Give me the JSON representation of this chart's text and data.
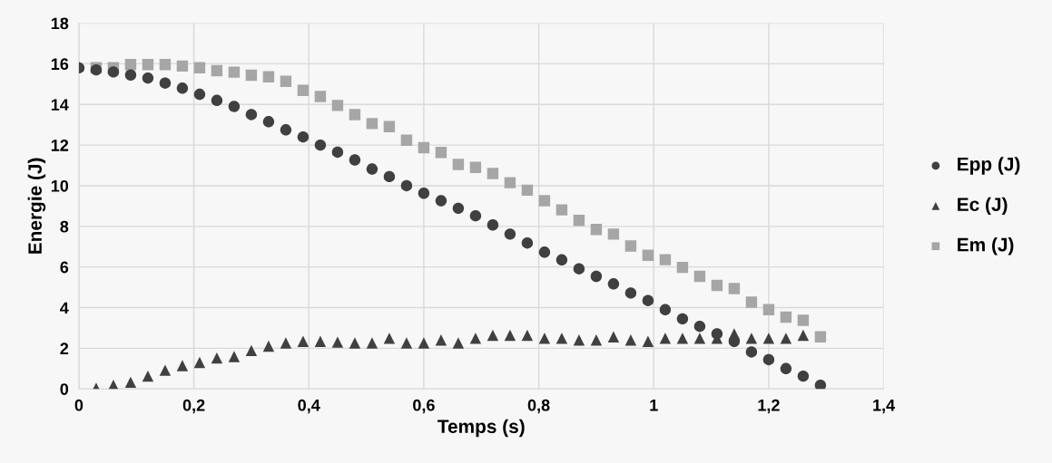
{
  "chart_data": {
    "type": "scatter",
    "xlabel": "Temps (s)",
    "ylabel": "Energie (J)",
    "xlim": [
      0,
      1.4
    ],
    "ylim": [
      0,
      18
    ],
    "xticks": [
      0,
      {
        "value": 0.2,
        "label": "0,2"
      },
      {
        "value": 0.4,
        "label": "0,4"
      },
      {
        "value": 0.6,
        "label": "0,6"
      },
      {
        "value": 0.8,
        "label": "0,8"
      },
      1,
      {
        "value": 1.2,
        "label": "1,2"
      },
      {
        "value": 1.4,
        "label": "1,4"
      }
    ],
    "yticks": [
      0,
      2,
      4,
      6,
      8,
      10,
      12,
      14,
      16,
      18
    ],
    "grid": true,
    "legend": "right",
    "series": [
      {
        "name": "Epp (J)",
        "color": "#404040",
        "marker": "circle",
        "x": [
          0,
          0.03,
          0.06,
          0.09,
          0.12,
          0.15,
          0.18,
          0.21,
          0.24,
          0.27,
          0.3,
          0.33,
          0.36,
          0.39,
          0.42,
          0.45,
          0.48,
          0.51,
          0.54,
          0.57,
          0.6,
          0.63,
          0.66,
          0.69,
          0.72,
          0.75,
          0.78,
          0.81,
          0.84,
          0.87,
          0.9,
          0.93,
          0.96,
          0.99,
          1.02,
          1.05,
          1.08,
          1.11,
          1.14,
          1.17,
          1.2,
          1.23,
          1.26,
          1.29
        ],
        "values": [
          15.8,
          15.7,
          15.6,
          15.45,
          15.3,
          15.05,
          14.8,
          14.5,
          14.2,
          13.9,
          13.5,
          13.15,
          12.75,
          12.4,
          12.0,
          11.65,
          11.27,
          10.82,
          10.45,
          10.0,
          9.63,
          9.26,
          8.89,
          8.52,
          8.07,
          7.62,
          7.18,
          6.73,
          6.35,
          5.91,
          5.54,
          5.17,
          4.72,
          4.35,
          3.9,
          3.45,
          3.08,
          2.71,
          2.34,
          1.82,
          1.44,
          1.0,
          0.63,
          0.18
        ]
      },
      {
        "name": "Ec (J)",
        "color": "#404040",
        "marker": "triangle",
        "x": [
          0.03,
          0.06,
          0.09,
          0.12,
          0.15,
          0.18,
          0.21,
          0.24,
          0.27,
          0.3,
          0.33,
          0.36,
          0.39,
          0.42,
          0.45,
          0.48,
          0.51,
          0.54,
          0.57,
          0.6,
          0.63,
          0.66,
          0.69,
          0.72,
          0.75,
          0.78,
          0.81,
          0.84,
          0.87,
          0.9,
          0.93,
          0.96,
          0.99,
          1.02,
          1.05,
          1.08,
          1.11,
          1.14,
          1.17,
          1.2,
          1.23,
          1.26
        ],
        "values": [
          0.03,
          0.18,
          0.33,
          0.63,
          0.92,
          1.15,
          1.3,
          1.52,
          1.59,
          1.89,
          2.11,
          2.26,
          2.34,
          2.34,
          2.3,
          2.26,
          2.26,
          2.49,
          2.26,
          2.26,
          2.41,
          2.26,
          2.49,
          2.64,
          2.64,
          2.64,
          2.49,
          2.49,
          2.41,
          2.41,
          2.56,
          2.41,
          2.34,
          2.49,
          2.49,
          2.49,
          2.49,
          2.71,
          2.49,
          2.49,
          2.49,
          2.64
        ]
      },
      {
        "name": "Em (J)",
        "color": "#a6a6a6",
        "marker": "square",
        "x": [
          0.03,
          0.06,
          0.09,
          0.12,
          0.15,
          0.18,
          0.21,
          0.24,
          0.27,
          0.3,
          0.33,
          0.36,
          0.39,
          0.42,
          0.45,
          0.48,
          0.51,
          0.54,
          0.57,
          0.6,
          0.63,
          0.66,
          0.69,
          0.72,
          0.75,
          0.78,
          0.81,
          0.84,
          0.87,
          0.9,
          0.93,
          0.96,
          0.99,
          1.02,
          1.05,
          1.08,
          1.11,
          1.14,
          1.17,
          1.2,
          1.23,
          1.26,
          1.29
        ],
        "values": [
          15.81,
          15.81,
          15.96,
          15.96,
          15.96,
          15.89,
          15.81,
          15.66,
          15.59,
          15.44,
          15.36,
          15.14,
          14.69,
          14.39,
          13.95,
          13.5,
          13.06,
          12.91,
          12.24,
          11.87,
          11.64,
          11.05,
          10.9,
          10.6,
          10.15,
          9.78,
          9.26,
          8.81,
          8.29,
          7.85,
          7.62,
          7.03,
          6.58,
          6.36,
          5.98,
          5.54,
          5.09,
          4.94,
          4.27,
          3.9,
          3.53,
          3.38,
          2.56
        ]
      }
    ]
  }
}
